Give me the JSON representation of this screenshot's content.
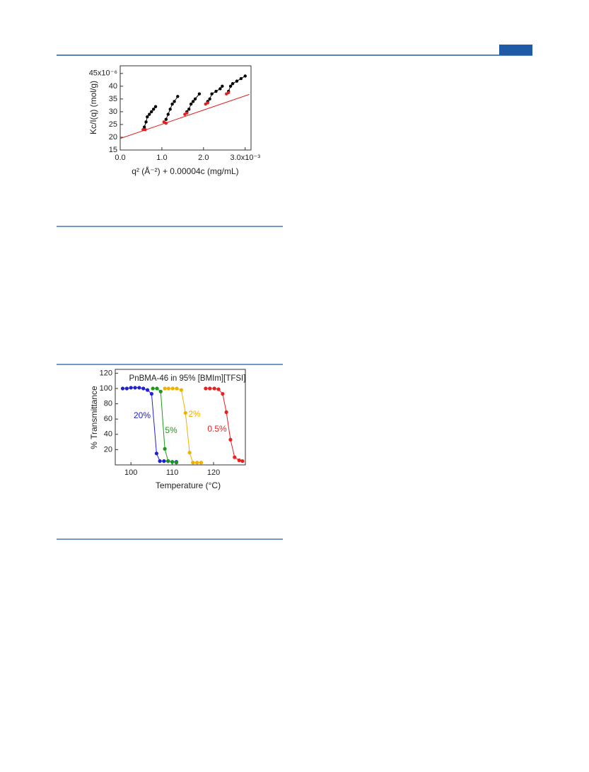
{
  "chart_data": [
    {
      "type": "scatter",
      "x_label": "q² (Å⁻²) + 0.00004c (mg/mL)",
      "y_label": "Kc/I(q) (mol/g)",
      "xlim": [
        0,
        0.00314
      ],
      "ylim": [
        1.5e-05,
        4.8e-05
      ],
      "xticks": [
        {
          "value": 0,
          "label": "0.0"
        },
        {
          "value": 0.001,
          "label": "1.0"
        },
        {
          "value": 0.002,
          "label": "2.0"
        },
        {
          "value": 0.003,
          "label": "3.0x10⁻³"
        }
      ],
      "yticks": [
        {
          "value": 1.5e-05,
          "label": "15"
        },
        {
          "value": 2e-05,
          "label": "20"
        },
        {
          "value": 2.5e-05,
          "label": "25"
        },
        {
          "value": 3e-05,
          "label": "30"
        },
        {
          "value": 3.5e-05,
          "label": "35"
        },
        {
          "value": 4e-05,
          "label": "40"
        },
        {
          "value": 4.5e-05,
          "label": "45x10⁻⁶"
        }
      ],
      "series": [
        {
          "color": "#e02020",
          "line": true,
          "markers": false,
          "x": [
            0,
            0.0031
          ],
          "values": [
            1.95e-05,
            3.68e-05
          ]
        },
        {
          "color": "#000000",
          "line": true,
          "markers": true,
          "x": [
            0.00058,
            0.00062,
            0.00065,
            0.0007,
            0.00075,
            0.0008,
            0.00085
          ],
          "values": [
            2.4e-05,
            2.6e-05,
            2.8e-05,
            2.9e-05,
            3e-05,
            3.1e-05,
            3.2e-05
          ]
        },
        {
          "color": "#000000",
          "line": true,
          "markers": true,
          "x": [
            0.0011,
            0.00115,
            0.0012,
            0.00125,
            0.0013,
            0.00138
          ],
          "values": [
            2.7e-05,
            2.9e-05,
            3.1e-05,
            3.3e-05,
            3.4e-05,
            3.6e-05
          ]
        },
        {
          "color": "#000000",
          "line": true,
          "markers": true,
          "x": [
            0.0016,
            0.00165,
            0.0017,
            0.00175,
            0.0018,
            0.0019
          ],
          "values": [
            3e-05,
            3.1e-05,
            3.3e-05,
            3.4e-05,
            3.5e-05,
            3.7e-05
          ]
        },
        {
          "color": "#000000",
          "line": true,
          "markers": true,
          "x": [
            0.0021,
            0.00215,
            0.0022,
            0.0023,
            0.0024,
            0.00245
          ],
          "values": [
            3.4e-05,
            3.5e-05,
            3.7e-05,
            3.8e-05,
            3.9e-05,
            4e-05
          ]
        },
        {
          "color": "#000000",
          "line": true,
          "markers": true,
          "x": [
            0.0026,
            0.00265,
            0.0027,
            0.0028,
            0.0029,
            0.003
          ],
          "values": [
            3.8e-05,
            4e-05,
            4.1e-05,
            4.2e-05,
            4.3e-05,
            4.4e-05
          ]
        },
        {
          "color": "#e02020",
          "line": false,
          "markers": true,
          "x": [
            0.00055,
            0.0006,
            0.00105,
            0.0011,
            0.00155,
            0.0016,
            0.00205,
            0.0021,
            0.00255,
            0.0026
          ],
          "values": [
            2.3e-05,
            2.3e-05,
            2.6e-05,
            2.55e-05,
            2.9e-05,
            2.95e-05,
            3.3e-05,
            3.35e-05,
            3.7e-05,
            3.75e-05
          ]
        }
      ]
    },
    {
      "type": "line",
      "title": "PnBMA-46 in 95% [BMIm][TFSI]",
      "x_label": "Temperature (°C)",
      "y_label": "% Transmittance",
      "xlim": [
        96.2,
        127.7
      ],
      "ylim": [
        0,
        125
      ],
      "xticks": [
        100,
        110,
        120
      ],
      "yticks": [
        20,
        40,
        60,
        80,
        100,
        120
      ],
      "series": [
        {
          "name": "20%",
          "color": "#2020d0",
          "line": true,
          "markers": true,
          "x": [
            98,
            99,
            100,
            101,
            102,
            103,
            104,
            105,
            106.2,
            107,
            108,
            109,
            110,
            111
          ],
          "values": [
            100,
            100,
            101,
            101,
            101,
            100,
            98,
            93,
            15,
            5,
            5,
            5,
            4,
            4
          ]
        },
        {
          "name": "5%",
          "color": "#1a9a1a",
          "line": true,
          "markers": true,
          "x": [
            105.3,
            106.3,
            107.2,
            108.2,
            109,
            110,
            111
          ],
          "values": [
            100,
            100,
            96,
            21,
            5,
            4,
            3
          ]
        },
        {
          "name": "2%",
          "color": "#f0b000",
          "line": true,
          "markers": true,
          "x": [
            108.2,
            109.1,
            110.1,
            111.1,
            112.2,
            113.2,
            114.2,
            115,
            116,
            117
          ],
          "values": [
            100,
            100,
            100,
            100,
            98,
            68,
            16,
            3,
            3,
            3
          ]
        },
        {
          "name": "0.5%",
          "color": "#e82020",
          "line": true,
          "markers": true,
          "x": [
            118.1,
            119.1,
            120.2,
            121.2,
            122.2,
            123.1,
            124.1,
            125.1,
            126.2,
            127
          ],
          "values": [
            100,
            100,
            100,
            99,
            93,
            69,
            33,
            10,
            6,
            5
          ]
        }
      ]
    }
  ]
}
